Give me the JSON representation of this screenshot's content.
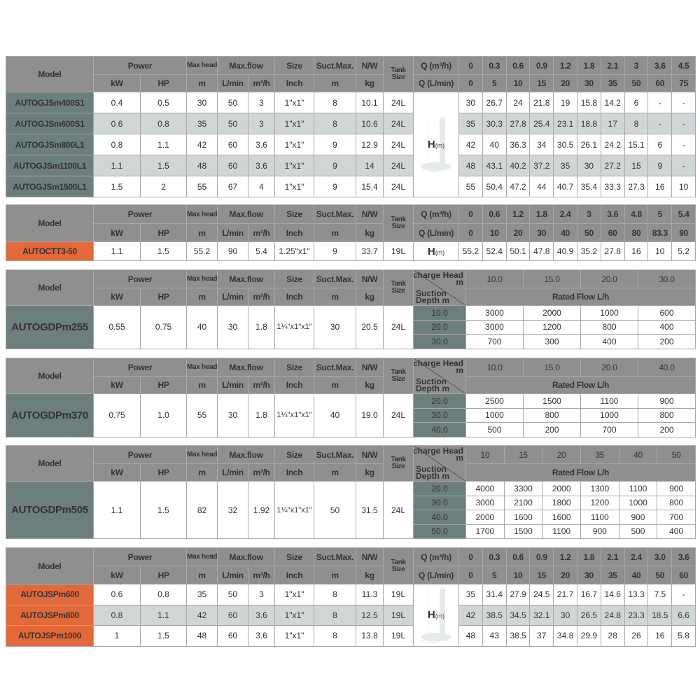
{
  "colors": {
    "header": "#8f8f8f",
    "model_teal": "#6d7f7c",
    "model_orange": "#e2693a",
    "alt_row": "#d0d7d3",
    "rated_text": "#4f7672"
  },
  "headers": {
    "model": "Model",
    "power": "Power",
    "max_head": "Max head",
    "max_flow": "Max.flow",
    "size": "Size",
    "suct_max": "Suct.Max.",
    "nw": "N/W",
    "tank_size": "Tank Size",
    "kw": "kW",
    "hp": "HP",
    "m": "m",
    "lmin": "L/min",
    "m3h": "m³/h",
    "inch": "Inch",
    "kg": "kg",
    "q_m3h": "Q (m³/h)",
    "q_lmin": "Q (L/min)",
    "h_m": "H",
    "h_unit": "(m)",
    "discharge_head": "Discharge Head",
    "discharge_unit": "m",
    "suction_depth": "Suction Depth m",
    "rated_flow": "Rated Flow L/h"
  },
  "tables": [
    {
      "type": "curve",
      "model_color": "teal",
      "q_m3h": [
        "0",
        "0.3",
        "0.6",
        "0.9",
        "1.2",
        "1.8",
        "2.1",
        "3",
        "3.6",
        "4.5"
      ],
      "q_lmin": [
        "0",
        "5",
        "10",
        "15",
        "20",
        "30",
        "35",
        "50",
        "60",
        "75"
      ],
      "rows": [
        {
          "model": "AUTOGJSm400S1",
          "specs": [
            "0.4",
            "0.5",
            "30",
            "50",
            "3",
            "1\"x1\"",
            "8",
            "10.1",
            "24L"
          ],
          "h": [
            "30",
            "26.7",
            "24",
            "21.8",
            "19",
            "15.8",
            "14.2",
            "6",
            "-",
            "-"
          ]
        },
        {
          "model": "AUTOGJSm600S1",
          "specs": [
            "0.6",
            "0.8",
            "35",
            "50",
            "3",
            "1\"x1\"",
            "8",
            "10.6",
            "24L"
          ],
          "h": [
            "35",
            "30.3",
            "27.8",
            "25.4",
            "23.1",
            "18.8",
            "17",
            "8",
            "-",
            "-"
          ]
        },
        {
          "model": "AUTOGJSm800L1",
          "specs": [
            "0.8",
            "1.1",
            "42",
            "60",
            "3.6",
            "1\"x1\"",
            "9",
            "12.9",
            "24L"
          ],
          "h": [
            "42",
            "40",
            "36.3",
            "34",
            "30.5",
            "26.1",
            "24.2",
            "15.1",
            "6",
            "-"
          ]
        },
        {
          "model": "AUTOGJSm1100L1",
          "specs": [
            "1.1",
            "1.5",
            "48",
            "60",
            "3.6",
            "1\"x1\"",
            "9",
            "14",
            "24L"
          ],
          "h": [
            "48",
            "43.1",
            "40.2",
            "37.2",
            "35",
            "30",
            "27.2",
            "15",
            "9",
            "-"
          ]
        },
        {
          "model": "AUTOGJSm1500L1",
          "specs": [
            "1.5",
            "2",
            "55",
            "67",
            "4",
            "1\"x1\"",
            "9",
            "15.4",
            "24L"
          ],
          "h": [
            "55",
            "50.4",
            "47.2",
            "44",
            "40.7",
            "35.4",
            "33.3",
            "27.3",
            "16",
            "10"
          ]
        }
      ]
    },
    {
      "type": "curve",
      "model_color": "orange",
      "q_m3h": [
        "0",
        "0.6",
        "1.2",
        "1.8",
        "2.4",
        "3",
        "3.6",
        "4.8",
        "5",
        "5.4"
      ],
      "q_lmin": [
        "0",
        "10",
        "20",
        "30",
        "40",
        "50",
        "60",
        "80",
        "83.3",
        "90"
      ],
      "rows": [
        {
          "model": "AUTOCTT3-50",
          "specs": [
            "1.1",
            "1.5",
            "55.2",
            "90",
            "5.4",
            "1.25\"x1\"",
            "9",
            "33.7",
            "19L"
          ],
          "h": [
            "55.2",
            "52.4",
            "50.1",
            "47.8",
            "40.9",
            "35.2",
            "27.8",
            "16",
            "10",
            "5.2"
          ]
        }
      ]
    },
    {
      "type": "rated",
      "model_color": "teal",
      "heads": [
        "10.0",
        "15.0",
        "20.0",
        "30.0"
      ],
      "model": "AUTOGDPm255",
      "specs": [
        "0.55",
        "0.75",
        "40",
        "30",
        "1.8",
        "1¼\"x1\"x1\"",
        "30",
        "20.5",
        "24L"
      ],
      "rows": [
        {
          "suction": "10.0",
          "flows": [
            "3000",
            "2000",
            "1000",
            "600"
          ]
        },
        {
          "suction": "20.0",
          "flows": [
            "3000",
            "1200",
            "800",
            "400"
          ]
        },
        {
          "suction": "30.0",
          "flows": [
            "700",
            "300",
            "400",
            "200"
          ]
        }
      ]
    },
    {
      "type": "rated",
      "model_color": "teal",
      "heads": [
        "10.0",
        "15.0",
        "20.0",
        "40.0"
      ],
      "model": "AUTOGDPm370",
      "specs": [
        "0.75",
        "1.0",
        "55",
        "30",
        "1.8",
        "1¼\"x1\"x1\"",
        "40",
        "19.0",
        "24L"
      ],
      "rows": [
        {
          "suction": "20.0",
          "flows": [
            "2500",
            "1500",
            "1100",
            "900"
          ]
        },
        {
          "suction": "30.0",
          "flows": [
            "1000",
            "800",
            "1000",
            "800"
          ]
        },
        {
          "suction": "40.0",
          "flows": [
            "500",
            "200",
            "700",
            "200"
          ]
        }
      ]
    },
    {
      "type": "rated",
      "model_color": "teal",
      "heads": [
        "10",
        "15",
        "20",
        "35",
        "40",
        "50"
      ],
      "model": "AUTOGDPm505",
      "specs": [
        "1.1",
        "1.5",
        "82",
        "32",
        "1.92",
        "1¼\"x1\"x1\"",
        "50",
        "31.5",
        "24L"
      ],
      "rows": [
        {
          "suction": "20.0",
          "flows": [
            "4000",
            "3300",
            "2000",
            "1300",
            "1100",
            "900"
          ]
        },
        {
          "suction": "30.0",
          "flows": [
            "3000",
            "2100",
            "1800",
            "1200",
            "1000",
            "800"
          ]
        },
        {
          "suction": "40.0",
          "flows": [
            "2000",
            "1600",
            "1600",
            "1100",
            "900",
            "700"
          ]
        },
        {
          "suction": "50.0",
          "flows": [
            "1700",
            "1500",
            "1100",
            "900",
            "500",
            "400"
          ]
        }
      ]
    },
    {
      "type": "curve",
      "model_color": "orange",
      "q_m3h": [
        "0",
        "0.3",
        "0.6",
        "0.9",
        "1.2",
        "1.8",
        "2.1",
        "2.4",
        "3.0",
        "3.6"
      ],
      "q_lmin": [
        "0",
        "5",
        "10",
        "15",
        "20",
        "30",
        "35",
        "40",
        "50",
        "60"
      ],
      "rows": [
        {
          "model": "AUTOJSPm600",
          "specs": [
            "0.6",
            "0.8",
            "35",
            "50",
            "3",
            "1\"x1\"",
            "8",
            "11.3",
            "19L"
          ],
          "h": [
            "35",
            "31.4",
            "27.9",
            "24.5",
            "21.7",
            "16.7",
            "14.6",
            "13.3",
            "7.5",
            "-"
          ]
        },
        {
          "model": "AUTOJSPm800",
          "specs": [
            "0.8",
            "1.1",
            "42",
            "60",
            "3.6",
            "1\"x1\"",
            "8",
            "12.5",
            "19L"
          ],
          "h": [
            "42",
            "38.5",
            "34.5",
            "32.1",
            "30",
            "26.5",
            "24.8",
            "23.3",
            "18.5",
            "6.6"
          ]
        },
        {
          "model": "AUTOJSPm1000",
          "specs": [
            "1",
            "1.5",
            "48",
            "60",
            "3.6",
            "1\"x1\"",
            "8",
            "13.8",
            "19L"
          ],
          "h": [
            "48",
            "43",
            "38.5",
            "37",
            "34.8",
            "29.9",
            "28",
            "26",
            "16",
            "5.8"
          ]
        }
      ]
    }
  ]
}
